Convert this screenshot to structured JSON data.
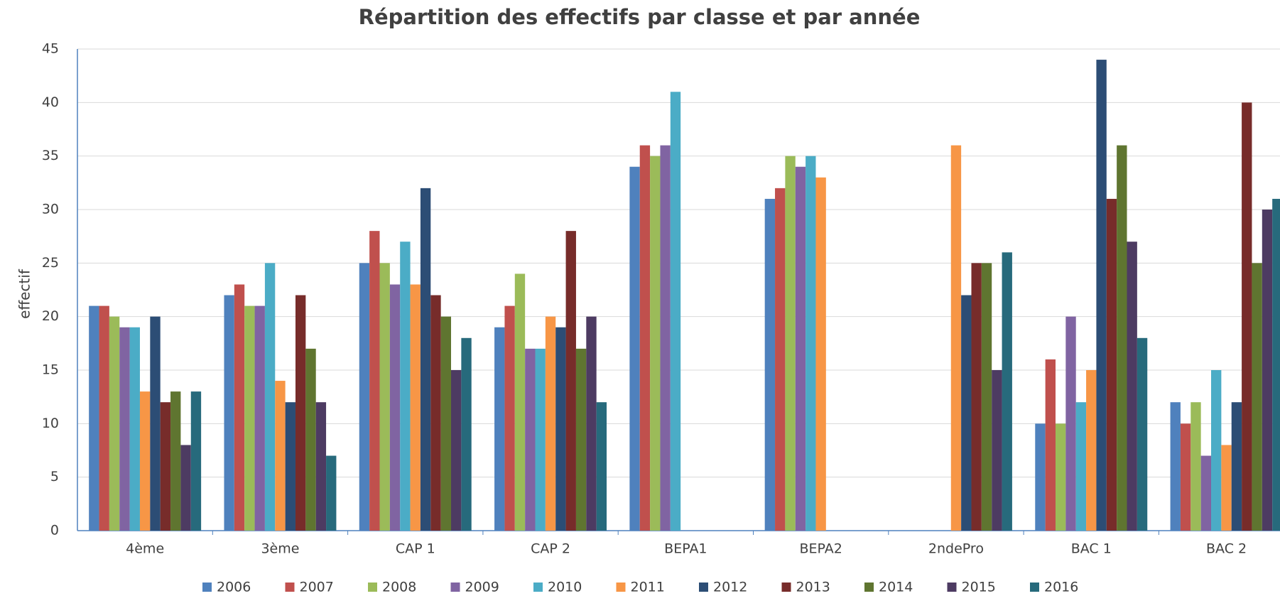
{
  "chart_data": {
    "type": "bar",
    "title": "Répartition des effectifs par classe et par année",
    "ylabel": "effectif",
    "categories": [
      "4ème",
      "3ème",
      "CAP 1",
      "CAP 2",
      "BEPA1",
      "BEPA2",
      "2ndePro",
      "BAC 1",
      "BAC 2"
    ],
    "series": [
      {
        "name": "2006",
        "color": "#4f81bd",
        "values": [
          21,
          22,
          25,
          19,
          34,
          31,
          null,
          10,
          12
        ]
      },
      {
        "name": "2007",
        "color": "#c0504d",
        "values": [
          21,
          23,
          28,
          21,
          36,
          32,
          null,
          16,
          10
        ]
      },
      {
        "name": "2008",
        "color": "#9bbb59",
        "values": [
          20,
          21,
          25,
          24,
          35,
          35,
          null,
          10,
          12
        ]
      },
      {
        "name": "2009",
        "color": "#8064a2",
        "values": [
          19,
          21,
          23,
          17,
          36,
          34,
          null,
          20,
          7
        ]
      },
      {
        "name": "2010",
        "color": "#4bacc6",
        "values": [
          19,
          25,
          27,
          17,
          41,
          35,
          null,
          12,
          15
        ]
      },
      {
        "name": "2011",
        "color": "#f79646",
        "values": [
          13,
          14,
          23,
          20,
          null,
          33,
          36,
          15,
          8
        ]
      },
      {
        "name": "2012",
        "color": "#2c4d75",
        "values": [
          20,
          12,
          32,
          19,
          null,
          null,
          22,
          44,
          12
        ]
      },
      {
        "name": "2013",
        "color": "#772c2a",
        "values": [
          12,
          22,
          22,
          28,
          null,
          null,
          25,
          31,
          40
        ]
      },
      {
        "name": "2014",
        "color": "#5f7530",
        "values": [
          13,
          17,
          20,
          17,
          null,
          null,
          25,
          36,
          25
        ]
      },
      {
        "name": "2015",
        "color": "#4d3b62",
        "values": [
          8,
          12,
          15,
          20,
          null,
          null,
          15,
          27,
          30
        ]
      },
      {
        "name": "2016",
        "color": "#276a7c",
        "values": [
          13,
          7,
          18,
          12,
          null,
          null,
          26,
          18,
          31
        ]
      }
    ],
    "ylim": [
      0,
      45
    ],
    "yticks": [
      0,
      5,
      10,
      15,
      20,
      25,
      30,
      35,
      40,
      45
    ],
    "grid": true,
    "legend": "bottom"
  }
}
